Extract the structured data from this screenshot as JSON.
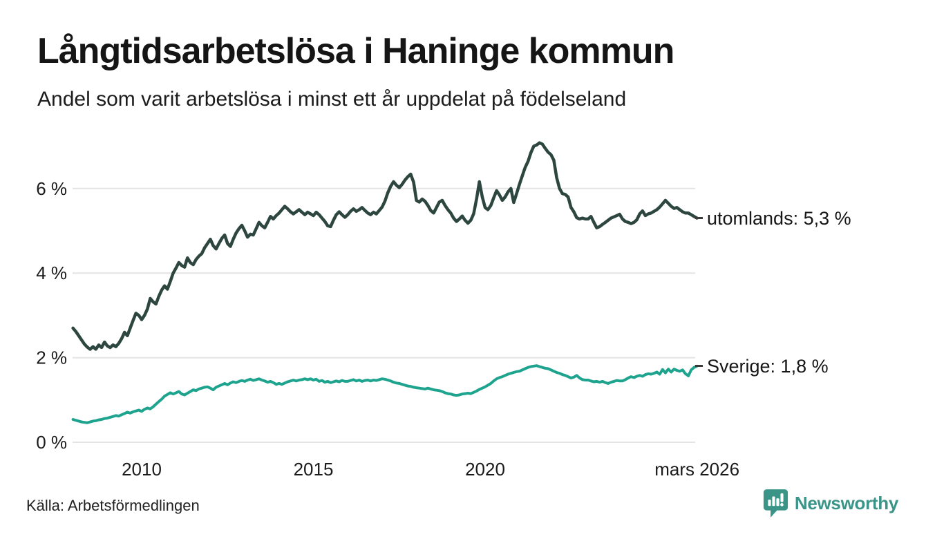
{
  "header": {
    "title": "Långtidsarbetslösa i Haninge kommun",
    "subtitle": "Andel som varit arbetslösa i minst ett år uppdelat på födelseland"
  },
  "footer": {
    "source": "Källa: Arbetsförmedlingen",
    "brand": "Newsworthy",
    "logo_color": "#3A9488",
    "logo_icon": "bar-chart-speech-bubble"
  },
  "chart_data": {
    "type": "line",
    "title": "Långtidsarbetslösa i Haninge kommun",
    "subtitle": "Andel som varit arbetslösa i minst ett år uppdelat på födelseland",
    "x_start": 2008.0,
    "x_interval": "monthly",
    "xlim": [
      2008.0,
      2026.25
    ],
    "ylim": [
      0,
      7.3
    ],
    "grid": "horizontal-only",
    "grid_color": "#E4E4E4",
    "tick_color": "#1A1A1A",
    "legend_position": "end-of-line",
    "x_ticks": [
      {
        "t": 2010.0,
        "label": "2010"
      },
      {
        "t": 2015.0,
        "label": "2015"
      },
      {
        "t": 2020.0,
        "label": "2020"
      },
      {
        "t": 2026.17,
        "label": "mars 2026"
      }
    ],
    "y_ticks": [
      {
        "v": 0,
        "label": "0 %"
      },
      {
        "v": 2,
        "label": "2 %"
      },
      {
        "v": 4,
        "label": "4 %"
      },
      {
        "v": 6,
        "label": "6 %"
      }
    ],
    "series": [
      {
        "name": "utomlands",
        "label": "utomlands: 5,3 %",
        "end_value": 5.3,
        "color": "#2D463F",
        "values": [
          2.7,
          2.62,
          2.52,
          2.42,
          2.32,
          2.25,
          2.2,
          2.26,
          2.2,
          2.3,
          2.24,
          2.37,
          2.28,
          2.24,
          2.3,
          2.26,
          2.34,
          2.45,
          2.6,
          2.52,
          2.7,
          2.88,
          3.05,
          3.0,
          2.9,
          3.0,
          3.15,
          3.4,
          3.32,
          3.27,
          3.45,
          3.6,
          3.7,
          3.62,
          3.8,
          4.0,
          4.12,
          4.25,
          4.18,
          4.14,
          4.36,
          4.25,
          4.2,
          4.32,
          4.4,
          4.46,
          4.6,
          4.7,
          4.8,
          4.65,
          4.57,
          4.7,
          4.82,
          4.9,
          4.7,
          4.63,
          4.8,
          4.95,
          5.05,
          5.13,
          5.0,
          4.85,
          4.92,
          4.9,
          5.05,
          5.2,
          5.12,
          5.07,
          5.2,
          5.34,
          5.28,
          5.36,
          5.42,
          5.5,
          5.58,
          5.52,
          5.45,
          5.4,
          5.45,
          5.5,
          5.44,
          5.38,
          5.44,
          5.4,
          5.36,
          5.44,
          5.38,
          5.3,
          5.22,
          5.12,
          5.1,
          5.25,
          5.38,
          5.45,
          5.38,
          5.32,
          5.38,
          5.46,
          5.52,
          5.46,
          5.5,
          5.55,
          5.48,
          5.42,
          5.38,
          5.44,
          5.4,
          5.48,
          5.56,
          5.7,
          5.9,
          6.05,
          6.16,
          6.08,
          6.02,
          6.1,
          6.2,
          6.28,
          6.34,
          6.15,
          5.72,
          5.68,
          5.75,
          5.7,
          5.6,
          5.48,
          5.42,
          5.55,
          5.68,
          5.72,
          5.6,
          5.5,
          5.42,
          5.3,
          5.22,
          5.28,
          5.35,
          5.25,
          5.18,
          5.25,
          5.4,
          5.75,
          6.16,
          5.8,
          5.55,
          5.5,
          5.6,
          5.78,
          5.95,
          5.85,
          5.72,
          5.8,
          5.92,
          6.0,
          5.67,
          5.88,
          6.1,
          6.3,
          6.5,
          6.64,
          6.85,
          7.0,
          7.03,
          7.08,
          7.05,
          6.95,
          6.86,
          6.8,
          6.67,
          6.26,
          6.0,
          5.88,
          5.86,
          5.8,
          5.55,
          5.45,
          5.31,
          5.28,
          5.3,
          5.28,
          5.28,
          5.34,
          5.2,
          5.07,
          5.1,
          5.15,
          5.2,
          5.25,
          5.3,
          5.33,
          5.36,
          5.39,
          5.28,
          5.22,
          5.2,
          5.17,
          5.2,
          5.26,
          5.4,
          5.47,
          5.36,
          5.4,
          5.42,
          5.46,
          5.5,
          5.56,
          5.64,
          5.72,
          5.65,
          5.58,
          5.53,
          5.55,
          5.5,
          5.45,
          5.42,
          5.42,
          5.38,
          5.34,
          5.3
        ]
      },
      {
        "name": "Sverige",
        "label": "Sverige: 1,8 %",
        "end_value": 1.8,
        "color": "#1EA48E",
        "values": [
          0.54,
          0.52,
          0.5,
          0.48,
          0.47,
          0.46,
          0.48,
          0.5,
          0.51,
          0.53,
          0.54,
          0.56,
          0.57,
          0.59,
          0.61,
          0.63,
          0.62,
          0.65,
          0.68,
          0.71,
          0.69,
          0.72,
          0.74,
          0.76,
          0.73,
          0.78,
          0.81,
          0.79,
          0.84,
          0.9,
          0.96,
          1.02,
          1.09,
          1.13,
          1.17,
          1.14,
          1.17,
          1.2,
          1.14,
          1.12,
          1.16,
          1.2,
          1.24,
          1.22,
          1.26,
          1.28,
          1.3,
          1.31,
          1.28,
          1.24,
          1.3,
          1.33,
          1.36,
          1.39,
          1.36,
          1.4,
          1.43,
          1.41,
          1.44,
          1.46,
          1.44,
          1.47,
          1.49,
          1.46,
          1.48,
          1.5,
          1.47,
          1.45,
          1.42,
          1.44,
          1.41,
          1.37,
          1.39,
          1.37,
          1.4,
          1.43,
          1.45,
          1.47,
          1.45,
          1.47,
          1.48,
          1.5,
          1.48,
          1.5,
          1.47,
          1.49,
          1.44,
          1.46,
          1.42,
          1.44,
          1.41,
          1.43,
          1.45,
          1.43,
          1.46,
          1.44,
          1.44,
          1.46,
          1.48,
          1.45,
          1.47,
          1.44,
          1.46,
          1.47,
          1.45,
          1.47,
          1.46,
          1.48,
          1.5,
          1.49,
          1.47,
          1.45,
          1.42,
          1.4,
          1.39,
          1.37,
          1.35,
          1.33,
          1.32,
          1.3,
          1.29,
          1.28,
          1.27,
          1.26,
          1.28,
          1.26,
          1.24,
          1.23,
          1.22,
          1.2,
          1.17,
          1.15,
          1.14,
          1.12,
          1.11,
          1.12,
          1.14,
          1.15,
          1.16,
          1.15,
          1.18,
          1.21,
          1.25,
          1.28,
          1.31,
          1.35,
          1.39,
          1.45,
          1.5,
          1.53,
          1.55,
          1.58,
          1.61,
          1.63,
          1.65,
          1.67,
          1.68,
          1.71,
          1.74,
          1.77,
          1.79,
          1.8,
          1.81,
          1.79,
          1.77,
          1.75,
          1.74,
          1.71,
          1.68,
          1.65,
          1.63,
          1.6,
          1.58,
          1.55,
          1.52,
          1.54,
          1.58,
          1.52,
          1.48,
          1.47,
          1.47,
          1.45,
          1.43,
          1.44,
          1.42,
          1.44,
          1.41,
          1.39,
          1.42,
          1.44,
          1.46,
          1.45,
          1.45,
          1.48,
          1.52,
          1.55,
          1.53,
          1.56,
          1.58,
          1.56,
          1.6,
          1.62,
          1.61,
          1.63,
          1.66,
          1.61,
          1.72,
          1.64,
          1.73,
          1.66,
          1.73,
          1.7,
          1.68,
          1.71,
          1.62,
          1.57,
          1.71,
          1.77,
          1.8
        ]
      }
    ]
  }
}
